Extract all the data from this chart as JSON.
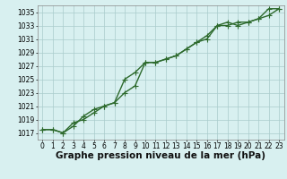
{
  "title": "Graphe pression niveau de la mer (hPa)",
  "x_values": [
    0,
    1,
    2,
    3,
    4,
    5,
    6,
    7,
    8,
    9,
    10,
    11,
    12,
    13,
    14,
    15,
    16,
    17,
    18,
    19,
    20,
    21,
    22,
    23
  ],
  "line1": [
    1017.5,
    1017.5,
    1017.0,
    1018.0,
    1019.5,
    1020.5,
    1021.0,
    1021.5,
    1023.0,
    1024.0,
    1027.5,
    1027.5,
    1028.0,
    1028.5,
    1029.5,
    1030.5,
    1031.5,
    1033.0,
    1033.0,
    1033.5,
    1033.5,
    1034.0,
    1035.5,
    1035.5
  ],
  "line2": [
    1017.5,
    1017.5,
    1017.0,
    1018.5,
    1019.0,
    1020.0,
    1021.0,
    1021.5,
    1025.0,
    1026.0,
    1027.5,
    1027.5,
    1028.0,
    1028.5,
    1029.5,
    1030.5,
    1031.0,
    1033.0,
    1033.5,
    1033.0,
    1033.5,
    1034.0,
    1034.5,
    1035.5
  ],
  "line_color": "#2d6a2d",
  "bg_color": "#d8f0f0",
  "grid_color": "#aacccc",
  "ylim": [
    1016,
    1036
  ],
  "yticks": [
    1017,
    1019,
    1021,
    1023,
    1025,
    1027,
    1029,
    1031,
    1033,
    1035
  ],
  "xlim": [
    -0.5,
    23.5
  ],
  "xticks": [
    0,
    1,
    2,
    3,
    4,
    5,
    6,
    7,
    8,
    9,
    10,
    11,
    12,
    13,
    14,
    15,
    16,
    17,
    18,
    19,
    20,
    21,
    22,
    23
  ],
  "marker": "+",
  "markersize": 4,
  "linewidth": 1.0,
  "title_fontsize": 7.5,
  "tick_fontsize": 5.5
}
